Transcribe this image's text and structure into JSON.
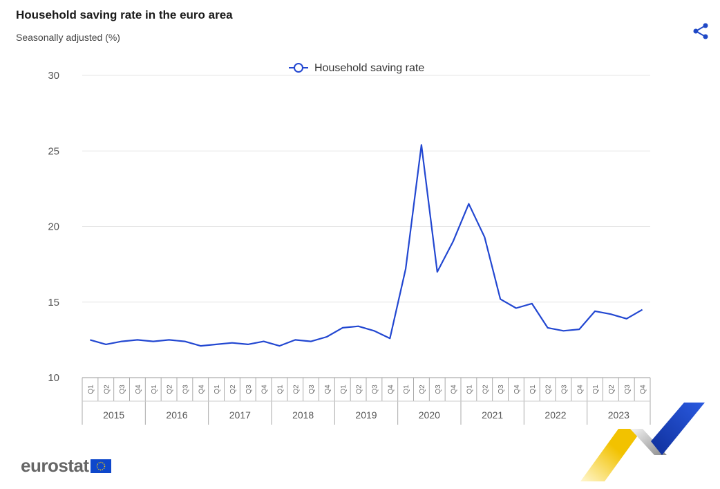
{
  "header": {
    "title": "Household saving rate in the euro area",
    "subtitle": "Seasonally adjusted (%)"
  },
  "branding": {
    "logo_text": "eurostat"
  },
  "colors": {
    "series": "#2247d1",
    "grid": "#e6e6e6",
    "axis_text": "#555555",
    "logo_gold": "#f2c200",
    "logo_blue": "#1f48c6"
  },
  "chart_data": {
    "type": "line",
    "title": "Household saving rate in the euro area",
    "subtitle": "Seasonally adjusted (%)",
    "xlabel": "",
    "ylabel": "",
    "ylim": [
      10,
      30
    ],
    "yticks": [
      10,
      15,
      20,
      25,
      30
    ],
    "grid": true,
    "legend": {
      "position": "top-center",
      "entries": [
        "Household saving rate"
      ]
    },
    "years": [
      "2015",
      "2016",
      "2017",
      "2018",
      "2019",
      "2020",
      "2021",
      "2022",
      "2023"
    ],
    "quarters": [
      "Q1",
      "Q2",
      "Q3",
      "Q4"
    ],
    "series": [
      {
        "name": "Household saving rate",
        "values": [
          12.5,
          12.2,
          12.4,
          12.5,
          12.4,
          12.5,
          12.4,
          12.1,
          12.2,
          12.3,
          12.2,
          12.4,
          12.1,
          12.5,
          12.4,
          12.7,
          13.3,
          13.4,
          13.1,
          12.6,
          17.2,
          25.4,
          17.0,
          19.0,
          21.5,
          19.3,
          15.2,
          14.6,
          14.9,
          13.3,
          13.1,
          13.2,
          14.4,
          14.2,
          13.9,
          14.5
        ]
      }
    ]
  }
}
